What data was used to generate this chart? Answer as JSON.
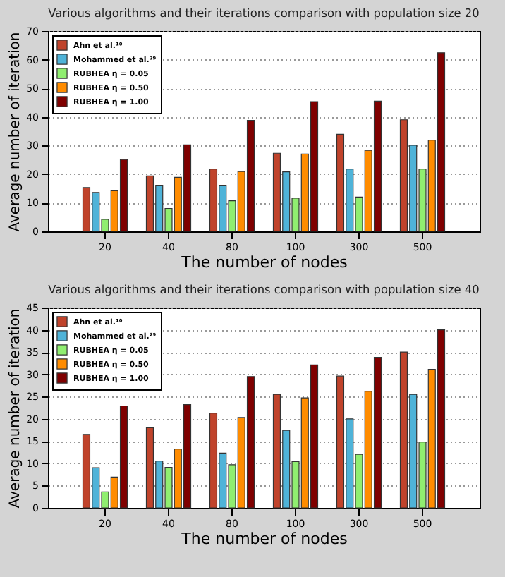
{
  "chart_data": [
    {
      "type": "bar",
      "title": "Various algorithms and their iterations comparison with population size 20",
      "xlabel": "The number of nodes",
      "ylabel": "Average number of iteration",
      "categories": [
        "20",
        "40",
        "80",
        "100",
        "300",
        "500"
      ],
      "series": [
        {
          "name": "Ahn et al.¹⁰",
          "color": "#c0432b",
          "values": [
            15.3,
            19.4,
            21.8,
            27.3,
            33.9,
            39.0
          ]
        },
        {
          "name": "Mohammed et al.²⁹",
          "color": "#4fb3d8",
          "values": [
            13.6,
            16.1,
            16.1,
            20.8,
            21.8,
            30.1
          ]
        },
        {
          "name": "RUBHEA η = 0.05",
          "color": "#90ee70",
          "values": [
            4.2,
            8.0,
            10.7,
            11.6,
            12.0,
            21.8
          ]
        },
        {
          "name": "RUBHEA η = 0.50",
          "color": "#ff8c00",
          "values": [
            14.2,
            18.9,
            20.9,
            27.0,
            28.3,
            31.9
          ]
        },
        {
          "name": "RUBHEA η = 1.00",
          "color": "#7f0000",
          "values": [
            25.1,
            30.2,
            38.8,
            45.3,
            45.5,
            62.4
          ]
        }
      ],
      "ylim": [
        0,
        70
      ],
      "yticks": [
        0,
        10,
        20,
        30,
        40,
        50,
        60,
        70
      ],
      "grid": "y",
      "legend": "top left"
    },
    {
      "type": "bar",
      "title": "Various algorithms and their iterations comparison with population size 40",
      "xlabel": "The number of nodes",
      "ylabel": "Average number of iteration",
      "categories": [
        "20",
        "40",
        "80",
        "100",
        "300",
        "500"
      ],
      "series": [
        {
          "name": "Ahn et al.¹⁰",
          "color": "#c0432b",
          "values": [
            16.5,
            18.0,
            21.3,
            25.5,
            29.6,
            35.0
          ]
        },
        {
          "name": "Mohammed et al.²⁹",
          "color": "#4fb3d8",
          "values": [
            9.0,
            10.5,
            12.3,
            17.4,
            20.0,
            25.5
          ]
        },
        {
          "name": "RUBHEA η = 0.05",
          "color": "#90ee70",
          "values": [
            3.6,
            9.1,
            9.7,
            10.4,
            12.0,
            14.8
          ]
        },
        {
          "name": "RUBHEA η = 0.50",
          "color": "#ff8c00",
          "values": [
            6.9,
            13.2,
            20.3,
            24.7,
            26.2,
            31.1
          ]
        },
        {
          "name": "RUBHEA η = 1.00",
          "color": "#7f0000",
          "values": [
            22.9,
            23.2,
            29.5,
            32.1,
            33.8,
            40.0
          ]
        }
      ],
      "ylim": [
        0,
        45
      ],
      "yticks": [
        0,
        5,
        10,
        15,
        20,
        25,
        30,
        35,
        40,
        45
      ],
      "grid": "y",
      "legend": "top left"
    }
  ]
}
